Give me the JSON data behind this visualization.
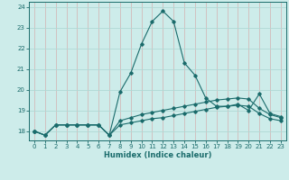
{
  "xlabel": "Humidex (Indice chaleur)",
  "xlim_min": -0.5,
  "xlim_max": 23.5,
  "ylim_min": 17.55,
  "ylim_max": 24.25,
  "yticks": [
    18,
    19,
    20,
    21,
    22,
    23,
    24
  ],
  "xticks": [
    0,
    1,
    2,
    3,
    4,
    5,
    6,
    7,
    8,
    9,
    10,
    11,
    12,
    13,
    14,
    15,
    16,
    17,
    18,
    19,
    20,
    21,
    22,
    23
  ],
  "background_color": "#cdecea",
  "grid_color_h": "#b0d8d5",
  "grid_color_v": "#d4b0b0",
  "line_color": "#1a6b6b",
  "hours": [
    0,
    1,
    2,
    3,
    4,
    5,
    6,
    7,
    8,
    9,
    10,
    11,
    12,
    13,
    14,
    15,
    16,
    17,
    18,
    19,
    20,
    21,
    22,
    23
  ],
  "line1": [
    18.0,
    17.8,
    18.3,
    18.3,
    18.3,
    18.3,
    18.3,
    17.8,
    19.9,
    20.8,
    22.2,
    23.3,
    23.8,
    23.3,
    21.3,
    20.7,
    19.6,
    19.2,
    19.2,
    19.3,
    19.0,
    19.8,
    18.85,
    18.7
  ],
  "line2": [
    18.0,
    17.8,
    18.3,
    18.3,
    18.3,
    18.3,
    18.3,
    17.8,
    18.5,
    18.65,
    18.8,
    18.9,
    19.0,
    19.1,
    19.2,
    19.3,
    19.4,
    19.5,
    19.55,
    19.6,
    19.55,
    19.1,
    18.8,
    18.65
  ],
  "line3": [
    18.0,
    17.8,
    18.3,
    18.3,
    18.3,
    18.3,
    18.3,
    17.8,
    18.3,
    18.4,
    18.5,
    18.6,
    18.65,
    18.75,
    18.85,
    18.95,
    19.05,
    19.15,
    19.2,
    19.25,
    19.2,
    18.85,
    18.6,
    18.5
  ]
}
